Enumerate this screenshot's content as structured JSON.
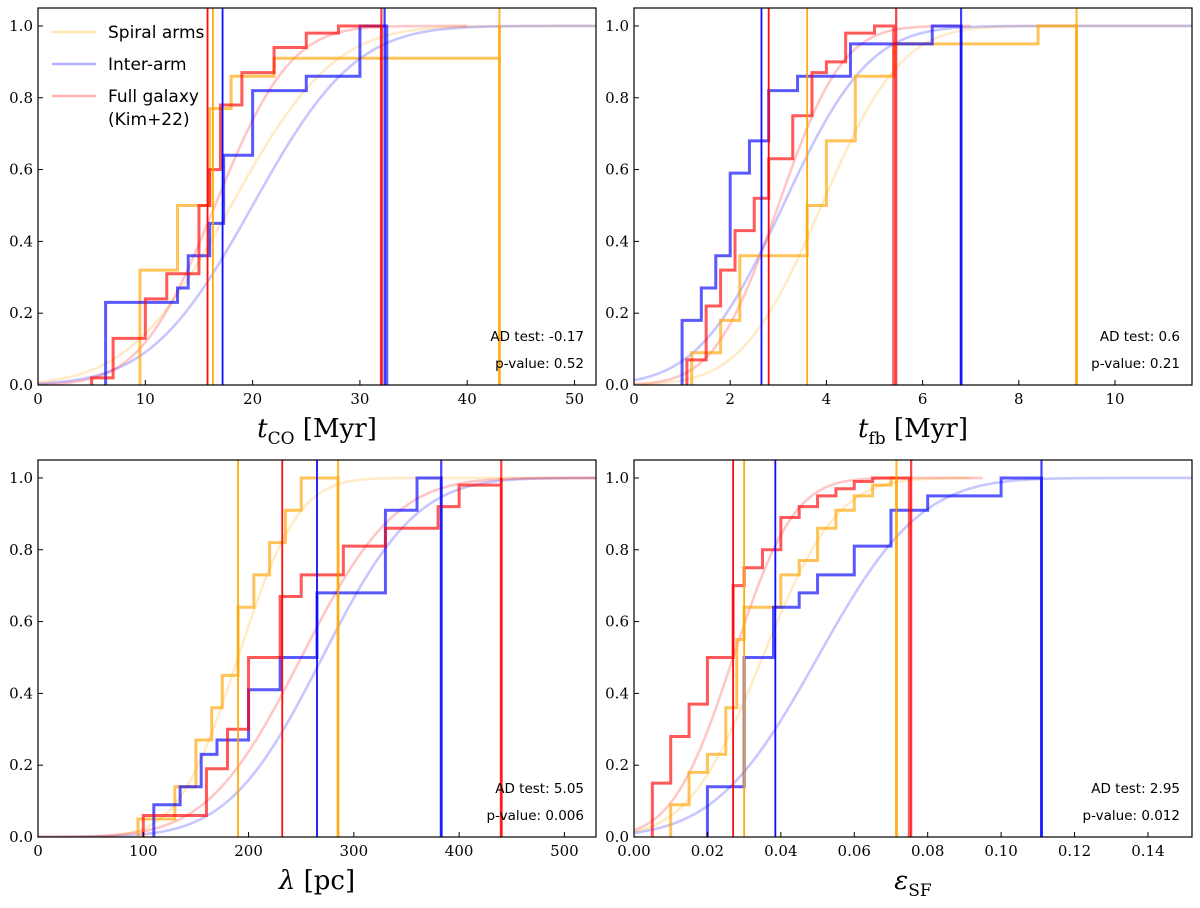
{
  "legend": {
    "location": "upper-left of first panel",
    "entries": [
      {
        "label": "Spiral arms",
        "color": "#FFA500"
      },
      {
        "label": "Inter-arm",
        "color": "#0000FF"
      },
      {
        "label": "Full galaxy",
        "label2": "(Kim+22)",
        "color": "#FF0000"
      }
    ]
  },
  "chart_data": [
    {
      "type": "line",
      "xlabel_main": "t",
      "xlabel_sub": "CO",
      "xlabel_unit": " [Myr]",
      "xlim": [
        0,
        52
      ],
      "ylim": [
        0,
        1.05
      ],
      "xticks": [
        0,
        10,
        20,
        30,
        40,
        50
      ],
      "yticks": [
        0.0,
        0.2,
        0.4,
        0.6,
        0.8,
        1.0
      ],
      "annotation": {
        "ad_label": "AD test:",
        "ad_value": "-0.17",
        "p_label": "p-value:",
        "p_value": "0.52"
      },
      "series": [
        {
          "name": "Spiral arms",
          "color": "#FFA500",
          "step_x": [
            9.5,
            13,
            16,
            18,
            22,
            30,
            43
          ],
          "step_y": [
            0.32,
            0.5,
            0.77,
            0.86,
            0.91,
            0.91,
            1.0
          ],
          "cdf_mu": 18,
          "cdf_sigma": 7.5,
          "cdf_xmax": 52,
          "vlines": [
            16.3,
            43
          ]
        },
        {
          "name": "Inter-arm",
          "color": "#0000FF",
          "step_x": [
            6.3,
            11,
            13,
            14,
            16,
            17.3,
            20,
            25,
            30,
            32.5
          ],
          "step_y": [
            0.23,
            0.23,
            0.27,
            0.36,
            0.45,
            0.64,
            0.82,
            0.86,
            1.0,
            1.0
          ],
          "cdf_mu": 20,
          "cdf_sigma": 7.5,
          "cdf_xmax": 52,
          "vlines": [
            17.2,
            32.3
          ]
        },
        {
          "name": "Full galaxy (Kim+22)",
          "color": "#FF0000",
          "step_x": [
            5,
            7,
            10,
            12,
            15,
            16,
            17,
            19,
            22,
            25,
            28,
            32
          ],
          "step_y": [
            0.02,
            0.13,
            0.24,
            0.31,
            0.5,
            0.6,
            0.78,
            0.87,
            0.94,
            0.98,
            1.0,
            1.0
          ],
          "cdf_mu": 16.5,
          "cdf_sigma": 5.5,
          "cdf_xmax": 40,
          "vlines": [
            15.8,
            32
          ]
        }
      ]
    },
    {
      "type": "line",
      "xlabel_main": "t",
      "xlabel_sub": "fb",
      "xlabel_unit": " [Myr]",
      "xlim": [
        0,
        11.6
      ],
      "ylim": [
        0,
        1.05
      ],
      "xticks": [
        0,
        2,
        4,
        6,
        8,
        10
      ],
      "yticks": [
        0.0,
        0.2,
        0.4,
        0.6,
        0.8,
        1.0
      ],
      "annotation": {
        "ad_label": "AD test:",
        "ad_value": "0.6",
        "p_label": "p-value:",
        "p_value": "0.21"
      },
      "series": [
        {
          "name": "Spiral arms",
          "color": "#FFA500",
          "step_x": [
            1.2,
            1.8,
            2.2,
            3,
            3.6,
            4,
            4.6,
            5.4,
            8.4,
            9.2
          ],
          "step_y": [
            0.09,
            0.18,
            0.36,
            0.36,
            0.5,
            0.68,
            0.86,
            0.95,
            1.0,
            1.0
          ],
          "cdf_mu": 3.9,
          "cdf_sigma": 1.3,
          "cdf_xmax": 11.6,
          "vlines": [
            3.6,
            9.2
          ]
        },
        {
          "name": "Inter-arm",
          "color": "#0000FF",
          "step_x": [
            1.0,
            1.4,
            1.7,
            2.0,
            2.4,
            2.8,
            3.4,
            3.7,
            4.5,
            6.2,
            6.8
          ],
          "step_y": [
            0.18,
            0.27,
            0.36,
            0.59,
            0.68,
            0.82,
            0.86,
            0.86,
            0.95,
            1.0,
            1.0
          ],
          "cdf_mu": 3.1,
          "cdf_sigma": 1.4,
          "cdf_xmax": 11.6,
          "vlines": [
            2.65,
            6.8
          ]
        },
        {
          "name": "Full galaxy (Kim+22)",
          "color": "#FF0000",
          "step_x": [
            1.1,
            1.5,
            1.8,
            2.1,
            2.5,
            2.8,
            3.3,
            3.7,
            4.0,
            4.4,
            5.0,
            5.4
          ],
          "step_y": [
            0.07,
            0.22,
            0.32,
            0.43,
            0.52,
            0.63,
            0.75,
            0.87,
            0.9,
            0.98,
            1.0,
            1.0
          ],
          "cdf_mu": 3.0,
          "cdf_sigma": 1.05,
          "cdf_xmax": 7,
          "vlines": [
            2.8,
            5.45
          ]
        }
      ]
    },
    {
      "type": "line",
      "xlabel_main": "λ",
      "xlabel_sub": "",
      "xlabel_unit": " [pc]",
      "xlim": [
        0,
        530
      ],
      "ylim": [
        0,
        1.05
      ],
      "xticks": [
        0,
        100,
        200,
        300,
        400,
        500
      ],
      "yticks": [
        0.0,
        0.2,
        0.4,
        0.6,
        0.8,
        1.0
      ],
      "annotation": {
        "ad_label": "AD test:",
        "ad_value": "5.05",
        "p_label": "p-value:",
        "p_value": "0.006"
      },
      "series": [
        {
          "name": "Spiral arms",
          "color": "#FFA500",
          "step_x": [
            95,
            130,
            150,
            165,
            175,
            190,
            205,
            220,
            235,
            250,
            265,
            285
          ],
          "step_y": [
            0.05,
            0.14,
            0.27,
            0.36,
            0.45,
            0.64,
            0.73,
            0.82,
            0.91,
            1.0,
            1.0,
            1.0
          ],
          "cdf_mu": 190,
          "cdf_sigma": 45,
          "cdf_xmax": 530,
          "vlines": [
            190,
            285
          ]
        },
        {
          "name": "Inter-arm",
          "color": "#0000FF",
          "step_x": [
            110,
            135,
            155,
            170,
            200,
            230,
            265,
            300,
            330,
            360,
            383
          ],
          "step_y": [
            0.09,
            0.14,
            0.23,
            0.27,
            0.41,
            0.5,
            0.68,
            0.68,
            0.91,
            1.0,
            1.0
          ],
          "cdf_mu": 270,
          "cdf_sigma": 70,
          "cdf_xmax": 530,
          "vlines": [
            265,
            383
          ]
        },
        {
          "name": "Full galaxy (Kim+22)",
          "color": "#FF0000",
          "step_x": [
            100,
            160,
            180,
            200,
            230,
            250,
            290,
            330,
            380,
            400,
            440
          ],
          "step_y": [
            0.06,
            0.19,
            0.3,
            0.5,
            0.67,
            0.73,
            0.81,
            0.86,
            0.92,
            0.98,
            1.0
          ],
          "cdf_mu": 250,
          "cdf_sigma": 70,
          "cdf_xmax": 530,
          "vlines": [
            232,
            440
          ]
        }
      ]
    },
    {
      "type": "line",
      "xlabel_main": "ε",
      "xlabel_sub": "SF",
      "xlabel_unit": "",
      "xlim": [
        0,
        0.152
      ],
      "ylim": [
        0,
        1.05
      ],
      "xticks": [
        0.0,
        0.02,
        0.04,
        0.06,
        0.08,
        0.1,
        0.12,
        0.14
      ],
      "xtick_labels": [
        "0.00",
        "0.02",
        "0.04",
        "0.06",
        "0.08",
        "0.10",
        "0.12",
        "0.14"
      ],
      "yticks": [
        0.0,
        0.2,
        0.4,
        0.6,
        0.8,
        1.0
      ],
      "annotation": {
        "ad_label": "AD test:",
        "ad_value": "2.95",
        "p_label": "p-value:",
        "p_value": "0.012"
      },
      "series": [
        {
          "name": "Spiral arms",
          "color": "#FFA500",
          "step_x": [
            0.01,
            0.015,
            0.02,
            0.025,
            0.028,
            0.03,
            0.04,
            0.045,
            0.05,
            0.055,
            0.06,
            0.065,
            0.07,
            0.0715
          ],
          "step_y": [
            0.09,
            0.18,
            0.23,
            0.36,
            0.55,
            0.64,
            0.73,
            0.77,
            0.86,
            0.91,
            0.95,
            0.98,
            1.0,
            1.0
          ],
          "cdf_mu": 0.035,
          "cdf_sigma": 0.016,
          "cdf_xmax": 0.092,
          "vlines": [
            0.03,
            0.0715
          ]
        },
        {
          "name": "Inter-arm",
          "color": "#0000FF",
          "step_x": [
            0.02,
            0.03,
            0.038,
            0.045,
            0.05,
            0.06,
            0.065,
            0.07,
            0.08,
            0.1,
            0.111
          ],
          "step_y": [
            0.14,
            0.5,
            0.64,
            0.68,
            0.73,
            0.81,
            0.81,
            0.91,
            0.95,
            1.0,
            1.0
          ],
          "cdf_mu": 0.05,
          "cdf_sigma": 0.022,
          "cdf_xmax": 0.152,
          "vlines": [
            0.0385,
            0.111
          ]
        },
        {
          "name": "Full galaxy (Kim+22)",
          "color": "#FF0000",
          "step_x": [
            0.005,
            0.01,
            0.015,
            0.02,
            0.027,
            0.03,
            0.035,
            0.04,
            0.045,
            0.05,
            0.055,
            0.06,
            0.065,
            0.075
          ],
          "step_y": [
            0.15,
            0.28,
            0.37,
            0.5,
            0.7,
            0.75,
            0.8,
            0.89,
            0.92,
            0.95,
            0.97,
            0.99,
            1.0,
            1.0
          ],
          "cdf_mu": 0.027,
          "cdf_sigma": 0.013,
          "cdf_xmax": 0.095,
          "vlines": [
            0.027,
            0.0755
          ]
        }
      ]
    }
  ]
}
